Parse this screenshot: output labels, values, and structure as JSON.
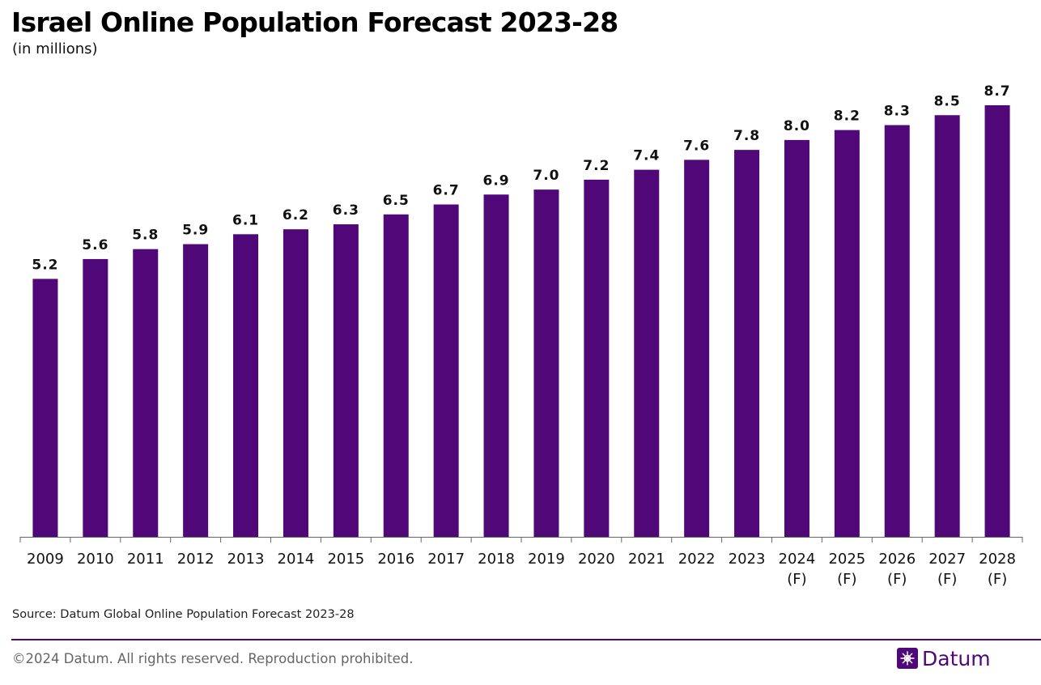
{
  "header": {
    "title": "Israel Online Population Forecast 2023-28",
    "subtitle": "(in millions)"
  },
  "colors": {
    "bar": "#500778",
    "axis": "#666666",
    "rule": "#500778",
    "brand": "#500778"
  },
  "chart_data": {
    "type": "bar",
    "title": "Israel Online Population Forecast 2023-28",
    "subtitle": "(in millions)",
    "xlabel": "",
    "ylabel": "",
    "categories": [
      "2009",
      "2010",
      "2011",
      "2012",
      "2013",
      "2014",
      "2015",
      "2016",
      "2017",
      "2018",
      "2019",
      "2020",
      "2021",
      "2022",
      "2023",
      "2024\n(F)",
      "2025\n(F)",
      "2026\n(F)",
      "2027\n(F)",
      "2028\n(F)"
    ],
    "values": [
      5.2,
      5.6,
      5.8,
      5.9,
      6.1,
      6.2,
      6.3,
      6.5,
      6.7,
      6.9,
      7.0,
      7.2,
      7.4,
      7.6,
      7.8,
      8.0,
      8.2,
      8.3,
      8.5,
      8.7
    ],
    "value_labels": [
      "5.2",
      "5.6",
      "5.8",
      "5.9",
      "6.1",
      "6.2",
      "6.3",
      "6.5",
      "6.7",
      "6.9",
      "7.0",
      "7.2",
      "7.4",
      "7.6",
      "7.8",
      "8.0",
      "8.2",
      "8.3",
      "8.5",
      "8.7"
    ],
    "ylim": [
      0,
      9.3
    ],
    "grid": false,
    "legend": "none"
  },
  "footer": {
    "source": "Source: Datum Global Online Population Forecast 2023-28",
    "copyright": "©2024 Datum. All rights reserved. Reproduction prohibited.",
    "brand_name": "Datum",
    "brand_icon": "datum-logo-icon"
  }
}
